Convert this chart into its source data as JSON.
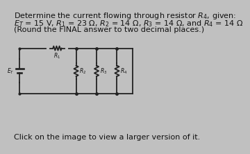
{
  "bg_color": "#c0c0c0",
  "title_line1": "Determine the current flowing through resistor $R_4$, given:",
  "title_line2": "$E_T$ = 15 V, $R_1$ = 23 Ω, $R_2$ = 14 Ω, $R_3$ = 14 Ω, and $R_4$ = 14 Ω",
  "title_line3": "(Round the FINAL answer to two decimal places.)",
  "footer": "Click on the image to view a larger version of it.",
  "text_color": "#111111",
  "circuit_color": "#222222",
  "font_size_main": 8.0,
  "font_size_footer": 8.0,
  "font_size_label": 5.5
}
